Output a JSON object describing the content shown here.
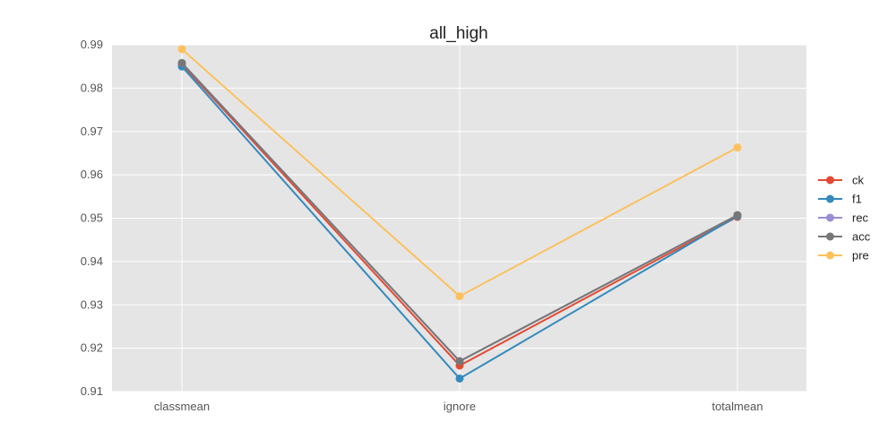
{
  "chart_data": {
    "type": "line",
    "title": "all_high",
    "xlabel": "",
    "ylabel": "",
    "categories": [
      "classmean",
      "ignore",
      "totalmean"
    ],
    "ylim": [
      0.91,
      0.99
    ],
    "yticks": [
      "0.91",
      "0.92",
      "0.93",
      "0.94",
      "0.95",
      "0.96",
      "0.97",
      "0.98",
      "0.99"
    ],
    "grid": true,
    "legend_position": "right",
    "series": [
      {
        "name": "ck",
        "color": "#E24A33",
        "values": [
          0.9855,
          0.916,
          0.9503
        ]
      },
      {
        "name": "f1",
        "color": "#348ABD",
        "values": [
          0.985,
          0.913,
          0.9505
        ]
      },
      {
        "name": "rec",
        "color": "#988ED5",
        "values": [
          0.9858,
          0.917,
          0.9507
        ]
      },
      {
        "name": "acc",
        "color": "#777777",
        "values": [
          0.9858,
          0.917,
          0.9507
        ]
      },
      {
        "name": "pre",
        "color": "#FBC15E",
        "values": [
          0.989,
          0.932,
          0.9663
        ]
      }
    ]
  }
}
